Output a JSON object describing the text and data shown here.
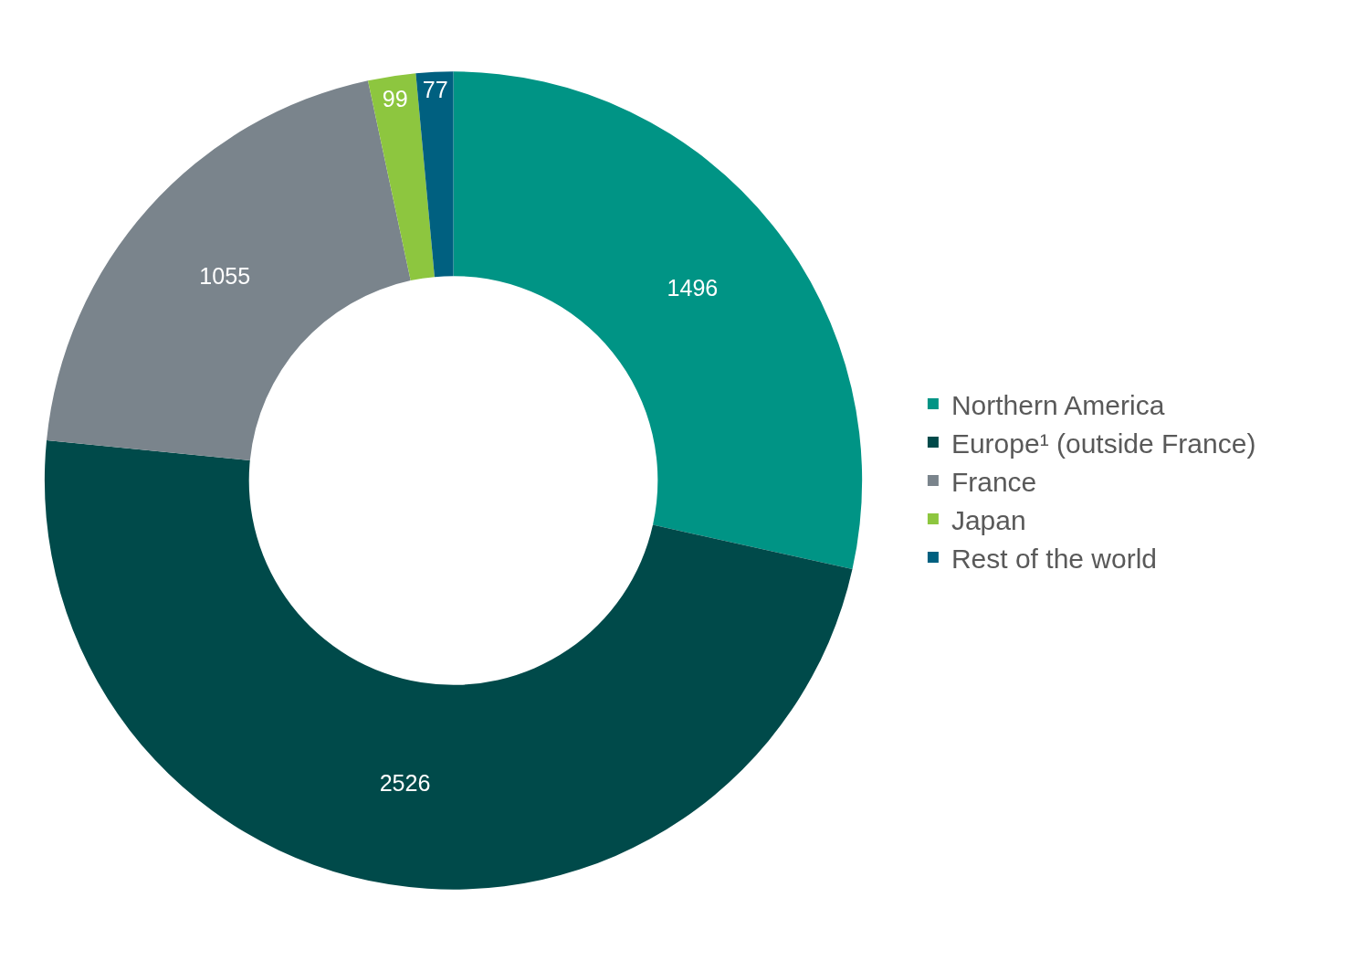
{
  "chart_data": {
    "type": "donut",
    "categories": [
      "Northern America",
      "Europe¹ (outside France)",
      "France",
      "Japan",
      "Rest of the world"
    ],
    "values": [
      1496,
      2526,
      1055,
      99,
      77
    ],
    "colors": [
      "#009485",
      "#004a4a",
      "#7a848c",
      "#8dc63f",
      "#006080"
    ],
    "data_labels": true,
    "legend": "right"
  }
}
